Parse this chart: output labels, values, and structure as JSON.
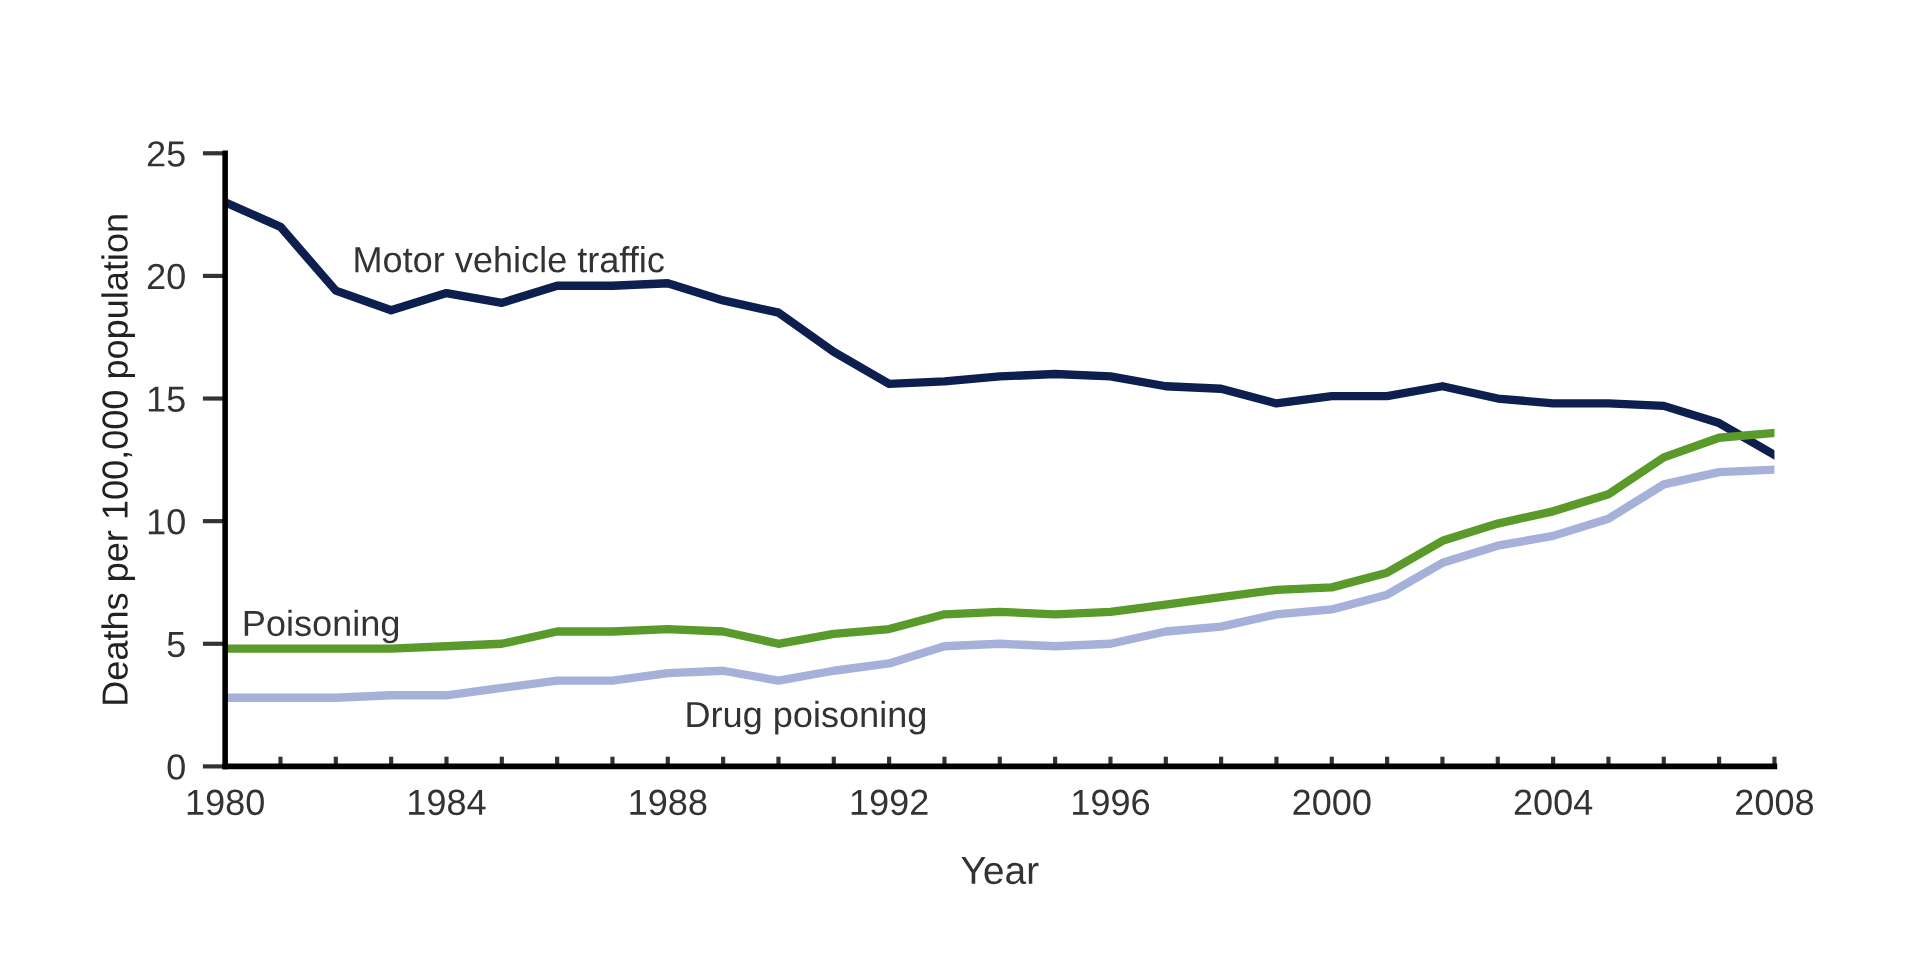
{
  "chart_data": {
    "type": "line",
    "xlabel": "Year",
    "ylabel": "Deaths per 100,000 population",
    "x": [
      1980,
      1981,
      1982,
      1983,
      1984,
      1985,
      1986,
      1987,
      1988,
      1989,
      1990,
      1991,
      1992,
      1993,
      1994,
      1995,
      1996,
      1997,
      1998,
      1999,
      2000,
      2001,
      2002,
      2003,
      2004,
      2005,
      2006,
      2007,
      2008
    ],
    "series": [
      {
        "name": "Motor vehicle traffic",
        "color": "#0d1f4f",
        "values": [
          23.0,
          22.0,
          19.4,
          18.6,
          19.3,
          18.9,
          19.6,
          19.6,
          19.7,
          19.0,
          18.5,
          16.9,
          15.6,
          15.7,
          15.9,
          16.0,
          15.9,
          15.5,
          15.4,
          14.8,
          15.1,
          15.1,
          15.5,
          15.0,
          14.8,
          14.8,
          14.7,
          14.0,
          12.7
        ]
      },
      {
        "name": "Poisoning",
        "color": "#5a9a2a",
        "values": [
          4.8,
          4.8,
          4.8,
          4.8,
          4.9,
          5.0,
          5.5,
          5.5,
          5.6,
          5.5,
          5.0,
          5.4,
          5.6,
          6.2,
          6.3,
          6.2,
          6.3,
          6.6,
          6.9,
          7.2,
          7.3,
          7.9,
          9.2,
          9.9,
          10.4,
          11.1,
          12.6,
          13.4,
          13.6
        ]
      },
      {
        "name": "Drug poisoning",
        "color": "#a6b1d9",
        "values": [
          2.8,
          2.8,
          2.8,
          2.9,
          2.9,
          3.2,
          3.5,
          3.5,
          3.8,
          3.9,
          3.5,
          3.9,
          4.2,
          4.9,
          5.0,
          4.9,
          5.0,
          5.5,
          5.7,
          6.2,
          6.4,
          7.0,
          8.3,
          9.0,
          9.4,
          10.1,
          11.5,
          12.0,
          12.1
        ]
      }
    ],
    "xlim": [
      1980,
      2008
    ],
    "ylim": [
      0,
      25
    ],
    "xticks": [
      1980,
      {
        "value": 1981,
        "label": null
      },
      {
        "value": 1982,
        "label": null
      },
      {
        "value": 1983,
        "label": null
      },
      1984,
      {
        "value": 1985,
        "label": null
      },
      {
        "value": 1986,
        "label": null
      },
      {
        "value": 1987,
        "label": null
      },
      1988,
      {
        "value": 1989,
        "label": null
      },
      {
        "value": 1990,
        "label": null
      },
      {
        "value": 1991,
        "label": null
      },
      1992,
      {
        "value": 1993,
        "label": null
      },
      {
        "value": 1994,
        "label": null
      },
      {
        "value": 1995,
        "label": null
      },
      1996,
      {
        "value": 1997,
        "label": null
      },
      {
        "value": 1998,
        "label": null
      },
      {
        "value": 1999,
        "label": null
      },
      2000,
      {
        "value": 2001,
        "label": null
      },
      {
        "value": 2002,
        "label": null
      },
      {
        "value": 2003,
        "label": null
      },
      2004,
      {
        "value": 2005,
        "label": null
      },
      {
        "value": 2006,
        "label": null
      },
      {
        "value": 2007,
        "label": null
      },
      2008
    ],
    "yticks": [
      0,
      5,
      10,
      15,
      20,
      25
    ],
    "grid": false,
    "legend": false,
    "marker": "none",
    "line_style": "solid"
  }
}
